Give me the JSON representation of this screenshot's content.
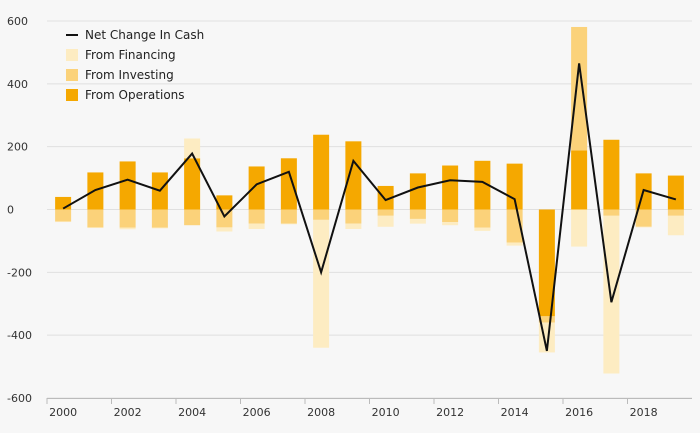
{
  "chart_data": {
    "type": "bar",
    "title": "",
    "xlabel": "",
    "ylabel": "",
    "ylim": [
      -600,
      600
    ],
    "yticks": [
      600,
      400,
      200,
      0,
      -200,
      -400,
      -600
    ],
    "ytick_labels": [
      "600",
      "400",
      "200",
      "0",
      "-200",
      "-400",
      "-600"
    ],
    "xtick_labels": [
      "2000",
      "2002",
      "2004",
      "2006",
      "2008",
      "2010",
      "2012",
      "2014",
      "2016",
      "2018"
    ],
    "categories": [
      "2000",
      "2001",
      "2002",
      "2003",
      "2004",
      "2005",
      "2006",
      "2007",
      "2008",
      "2009",
      "2010",
      "2011",
      "2012",
      "2013",
      "2014",
      "2015",
      "2016",
      "2017",
      "2018",
      "2019"
    ],
    "stacked": true,
    "grid": true,
    "legend_position": "top-left",
    "series": [
      {
        "name": "From Operations",
        "kind": "bar",
        "color": "#f5a800",
        "values": [
          40,
          118,
          153,
          118,
          163,
          45,
          137,
          163,
          238,
          217,
          75,
          115,
          140,
          155,
          146,
          -340,
          188,
          222,
          115,
          108
        ]
      },
      {
        "name": "From Investing",
        "kind": "bar",
        "color": "#fbd27a",
        "values": [
          -38,
          -57,
          -58,
          -58,
          -50,
          -57,
          -45,
          -45,
          -33,
          -45,
          -20,
          -30,
          -40,
          -58,
          -105,
          -20,
          393,
          -20,
          -55,
          -20
        ]
      },
      {
        "name": "From Financing",
        "kind": "bar",
        "color": "#fdecc2",
        "values": [
          -2,
          -2,
          -5,
          -2,
          63,
          -13,
          -17,
          -2,
          -407,
          -17,
          -35,
          -15,
          -10,
          -10,
          -10,
          -95,
          -118,
          -502,
          -2,
          -62
        ]
      },
      {
        "name": "Net Change In Cash",
        "kind": "line",
        "color": "#111111",
        "values": [
          3,
          62,
          95,
          60,
          178,
          -22,
          80,
          120,
          -200,
          155,
          30,
          70,
          93,
          88,
          33,
          -450,
          465,
          -295,
          62,
          32
        ]
      }
    ],
    "legend_order": [
      "Net Change In Cash",
      "From Financing",
      "From Investing",
      "From Operations"
    ]
  }
}
